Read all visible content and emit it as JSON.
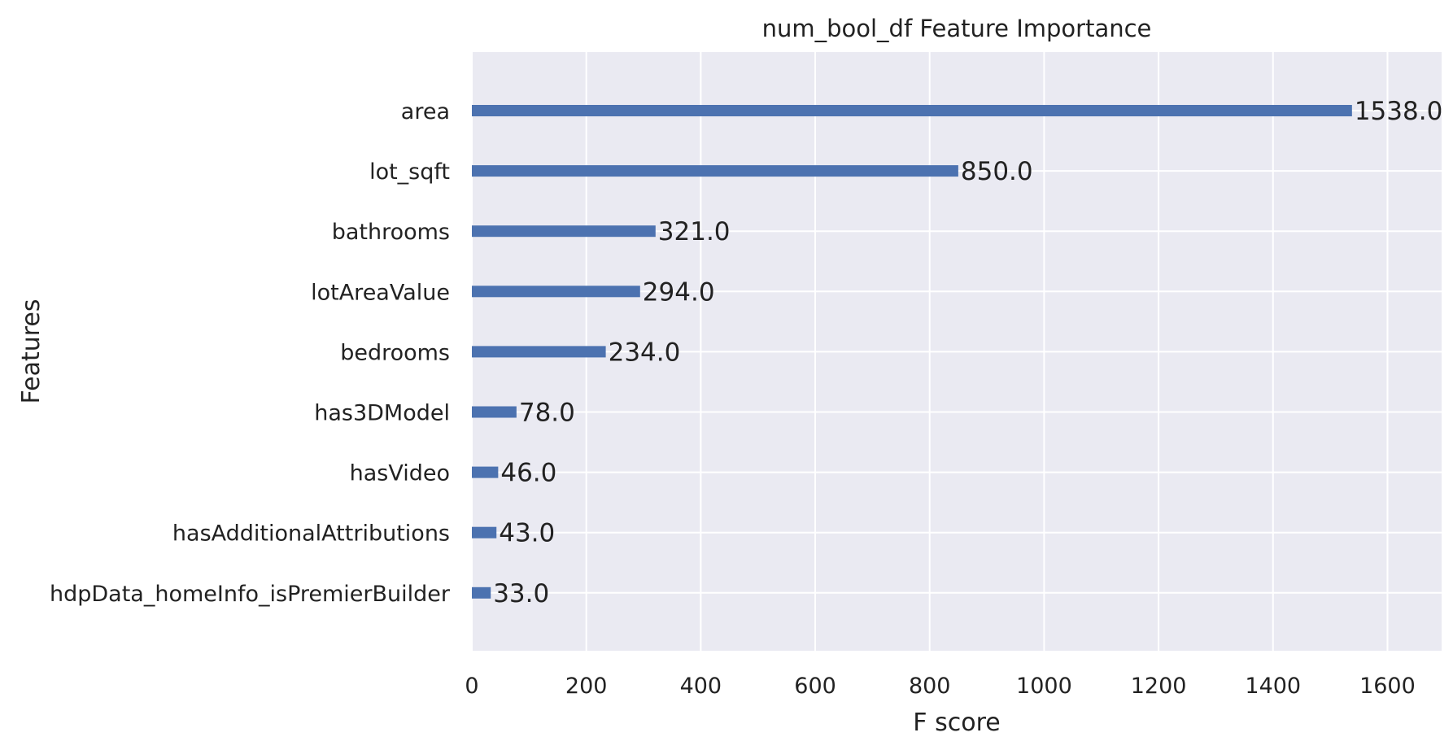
{
  "chart_data": {
    "type": "bar",
    "orientation": "horizontal",
    "title": "num_bool_df Feature Importance",
    "xlabel": "F score",
    "ylabel": "Features",
    "xlim": [
      0,
      1680
    ],
    "x_ticks": [
      0,
      200,
      400,
      600,
      800,
      1000,
      1200,
      1400,
      1600
    ],
    "x_tick_labels": [
      "0",
      "200",
      "400",
      "600",
      "800",
      "1000",
      "1200",
      "1400",
      "1600"
    ],
    "grid": true,
    "categories": [
      "area",
      "lot_sqft",
      "bathrooms",
      "lotAreaValue",
      "bedrooms",
      "has3DModel",
      "hasVideo",
      "hasAdditionalAttributions",
      "hdpData_homeInfo_isPremierBuilder"
    ],
    "values": [
      1538.0,
      850.0,
      321.0,
      294.0,
      234.0,
      78.0,
      46.0,
      43.0,
      33.0
    ],
    "value_labels": [
      "1538.0",
      "850.0",
      "321.0",
      "294.0",
      "234.0",
      "78.0",
      "46.0",
      "43.0",
      "33.0"
    ],
    "colors": {
      "bar": "#4c72b0",
      "plot_background": "#eaeaf2",
      "grid": "#ffffff",
      "text": "#222222"
    }
  }
}
